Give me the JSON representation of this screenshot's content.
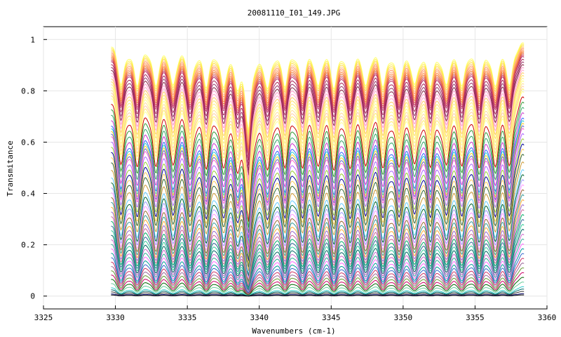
{
  "chart_data": {
    "type": "line",
    "title": "20081110_I01_149.JPG",
    "xlabel": "Wavenumbers (cm-1)",
    "ylabel": "Transmitance",
    "xlim": [
      3325,
      3360
    ],
    "ylim": [
      -0.05,
      1.05
    ],
    "xticks": [
      3325,
      3330,
      3335,
      3340,
      3345,
      3350,
      3355,
      3360
    ],
    "yticks": [
      0,
      0.2,
      0.4,
      0.6,
      0.8,
      1
    ],
    "ytick_labels": [
      "0",
      "0.2",
      "0.4",
      "0.6",
      "0.8",
      "1"
    ],
    "grid": true,
    "x_range_of_data": [
      3329.7,
      3358.4
    ],
    "absorption_line_centers": [
      3330.4,
      3331.5,
      3332.8,
      3334.0,
      3335.2,
      3336.3,
      3337.5,
      3338.5,
      3339.2,
      3340.6,
      3341.8,
      3343.0,
      3344.1,
      3345.2,
      3346.3,
      3347.4,
      3348.6,
      3349.7,
      3350.8,
      3351.9,
      3353.0,
      3354.1,
      3355.3,
      3356.4,
      3357.4
    ],
    "series_baselines": [
      1.0,
      0.995,
      0.99,
      0.985,
      0.98,
      0.975,
      0.97,
      0.965,
      0.96,
      0.955,
      0.95,
      0.94,
      0.93,
      0.92,
      0.91,
      0.9,
      0.89,
      0.88,
      0.87,
      0.86,
      0.85,
      0.84,
      0.83,
      0.82,
      0.8,
      0.78,
      0.76,
      0.74,
      0.72,
      0.71,
      0.7,
      0.69,
      0.68,
      0.66,
      0.64,
      0.62,
      0.6,
      0.58,
      0.55,
      0.52,
      0.5,
      0.48,
      0.46,
      0.44,
      0.42,
      0.4,
      0.38,
      0.36,
      0.34,
      0.32,
      0.3,
      0.28,
      0.26,
      0.24,
      0.22,
      0.2,
      0.18,
      0.16,
      0.14,
      0.12,
      0.1,
      0.08,
      0.06,
      0.04,
      0.03,
      0.02,
      0.01,
      0.005
    ],
    "series_colors": [
      "#ffff66",
      "#ffee55",
      "#ffdd44",
      "#ffcc88",
      "#ff9966",
      "#ffaa77",
      "#ff8844",
      "#ee7733",
      "#dd6655",
      "#cc4466",
      "#bb3366",
      "#aa2255",
      "#993366",
      "#882244",
      "#ff99cc",
      "#ffaacc",
      "#ffcc66",
      "#ffe066",
      "#ffee88",
      "#ffff88",
      "#ffe099",
      "#ffd0a0",
      "#ffee66",
      "#ffff99",
      "#cc0000",
      "#339933",
      "#33aa66",
      "#cc33cc",
      "#3366ff",
      "#33cccc",
      "#ffcc33",
      "#6666cc",
      "#ff66cc",
      "#aa66ff",
      "#99cc33",
      "#000099",
      "#ffcc55",
      "#336633",
      "#cc9933",
      "#66ccff",
      "#006633",
      "#9999ff",
      "#ff99ff",
      "#996633",
      "#339999",
      "#ffaa33",
      "#9966cc",
      "#cc6699",
      "#00aa66",
      "#336699",
      "#33cc99",
      "#006666",
      "#cc66cc",
      "#33aa99",
      "#ff66ff",
      "#009999",
      "#3366cc",
      "#cc3366",
      "#996699",
      "#669933",
      "#cc0066",
      "#006600",
      "#66cc99",
      "#33cccc",
      "#006666",
      "#333333",
      "#000066",
      "#000000"
    ]
  }
}
